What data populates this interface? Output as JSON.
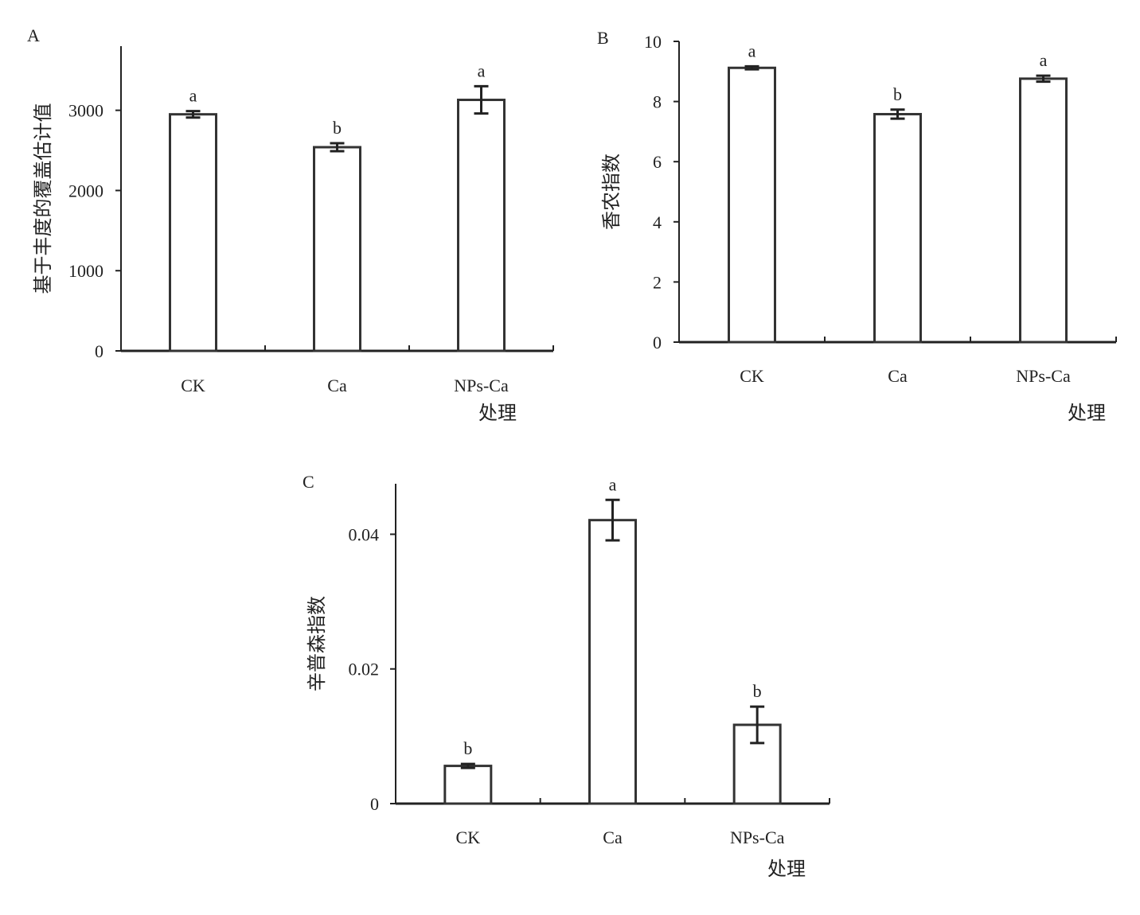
{
  "chart_data": [
    {
      "panel": "A",
      "type": "bar",
      "categories": [
        "CK",
        "Ca",
        "NPs-Ca"
      ],
      "values": [
        2950,
        2540,
        3130
      ],
      "errors": [
        40,
        50,
        170
      ],
      "significance": [
        "a",
        "b",
        "a"
      ],
      "xlabel": "处理",
      "ylabel": "基于丰度的覆盖估计值",
      "ylim": [
        0,
        3800
      ],
      "yticks": [
        0,
        1000,
        2000,
        3000
      ],
      "ytick_labels": [
        "0",
        "1000",
        "2000",
        "3000"
      ],
      "grid": false,
      "legend": "none"
    },
    {
      "panel": "B",
      "type": "bar",
      "categories": [
        "CK",
        "Ca",
        "NPs-Ca"
      ],
      "values": [
        9.12,
        7.58,
        8.76
      ],
      "errors": [
        0.05,
        0.15,
        0.1
      ],
      "significance": [
        "a",
        "b",
        "a"
      ],
      "xlabel": "处理",
      "ylabel": "香农指数",
      "ylim": [
        0,
        10
      ],
      "yticks": [
        0,
        2,
        4,
        6,
        8,
        10
      ],
      "ytick_labels": [
        "0",
        "2",
        "4",
        "6",
        "8",
        "10"
      ],
      "grid": false,
      "legend": "none"
    },
    {
      "panel": "C",
      "type": "bar",
      "categories": [
        "CK",
        "Ca",
        "NPs-Ca"
      ],
      "values": [
        0.0056,
        0.0421,
        0.0117
      ],
      "errors": [
        0.0003,
        0.003,
        0.0027
      ],
      "significance": [
        "b",
        "a",
        "b"
      ],
      "xlabel": "处理",
      "ylabel": "辛普森指数",
      "ylim": [
        0,
        0.0475
      ],
      "yticks": [
        0,
        0.02,
        0.04
      ],
      "ytick_labels": [
        "0",
        "0.02",
        "0.04"
      ],
      "grid": false,
      "legend": "none"
    }
  ],
  "colors": {
    "axis": "#222222",
    "bar_fill": "#ffffff",
    "bar_stroke": "#333333"
  }
}
